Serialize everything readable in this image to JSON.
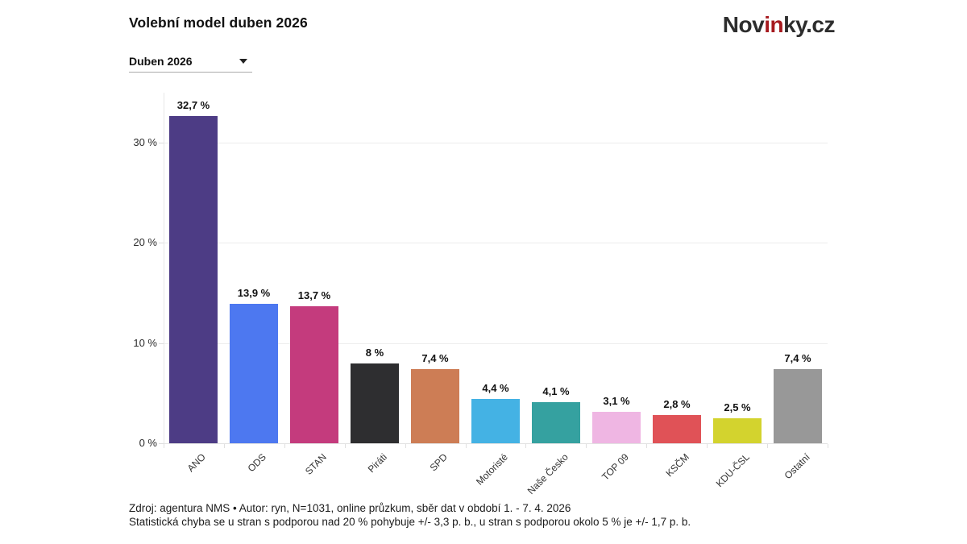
{
  "header": {
    "title": "Volební model duben 2026",
    "logo": {
      "part1": "Nov",
      "part2_accent": "in",
      "part3": "ky.cz",
      "accent_color": "#a6191e",
      "text_color": "#2d2d2d"
    }
  },
  "controls": {
    "period_dropdown": {
      "value": "Duben 2026",
      "icon": "caret-down-icon"
    }
  },
  "chart_data": {
    "type": "bar",
    "title": "Volební model duben 2026",
    "categories": [
      "ANO",
      "ODS",
      "STAN",
      "Piráti",
      "SPD",
      "Motoristé",
      "Naše Česko",
      "TOP 09",
      "KSČM",
      "KDU-ČSL",
      "Ostatní"
    ],
    "values": [
      32.7,
      13.9,
      13.7,
      8,
      7.4,
      4.4,
      4.1,
      3.1,
      2.8,
      2.5,
      7.4
    ],
    "value_labels": [
      "32,7 %",
      "13,9 %",
      "13,7 %",
      "8 %",
      "7,4 %",
      "4,4 %",
      "4,1 %",
      "3,1 %",
      "2,8 %",
      "2,5 %",
      "7,4 %"
    ],
    "bar_colors": [
      "#4d3c85",
      "#4d78f0",
      "#c43b7d",
      "#2e2e30",
      "#cd7d55",
      "#44b2e4",
      "#35a1a0",
      "#efb6e3",
      "#e05257",
      "#d3d32e",
      "#989898"
    ],
    "xlabel": "",
    "ylabel": "",
    "ylim": [
      0,
      35
    ],
    "yticks": [
      0,
      10,
      20,
      30
    ],
    "ytick_labels": [
      "0 %",
      "10 %",
      "20 %",
      "30 %"
    ],
    "grid": true,
    "legend": "none",
    "grid_color": "#ededed"
  },
  "footer": {
    "line1": "Zdroj: agentura NMS • Autor: ryn, N=1031, online průzkum, sběr dat v období 1. - 7. 4. 2026",
    "line2": "Statistická chyba se u stran s podporou nad 20 % pohybuje +/- 3,3 p. b., u stran s podporou okolo 5 % je +/- 1,7 p. b."
  }
}
